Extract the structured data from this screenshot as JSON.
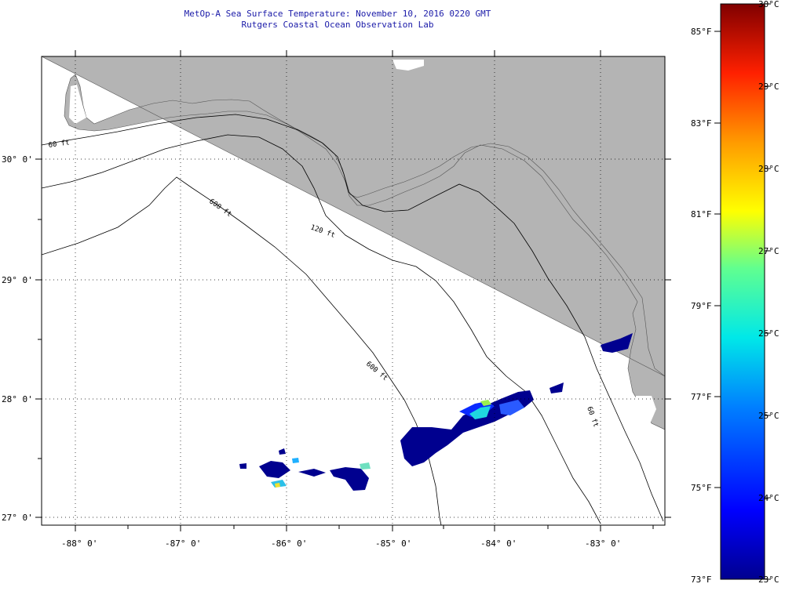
{
  "title_line1": "MetOp-A Sea Surface Temperature:  November 10, 2016 0220 GMT",
  "title_line2": "Rutgers Coastal Ocean Observation Lab",
  "lon_labels": [
    "-88° 0'",
    "-87° 0'",
    "-86° 0'",
    "-85° 0'",
    "-84° 0'",
    "-83° 0'"
  ],
  "lat_labels": [
    "30° 0'",
    "29° 0'",
    "28° 0'",
    "27° 0'"
  ],
  "contour_labels": [
    "60 ft",
    "120 ft",
    "600 ft",
    "600 ft",
    "60 ft"
  ],
  "colorbar": {
    "f_labels": [
      "85°F",
      "83°F",
      "81°F",
      "79°F",
      "77°F",
      "75°F",
      "73°F"
    ],
    "c_labels": [
      "30°C",
      "29°C",
      "28°C",
      "27°C",
      "26°C",
      "25°C",
      "24°C",
      "23°C"
    ]
  },
  "colors": {
    "land": "#b4b4b4",
    "water": "#ffffff",
    "title": "#1a1aa8"
  },
  "chart_data": {
    "type": "heatmap",
    "variable": "sea surface temperature",
    "x_range": [
      -88.3,
      -82.4
    ],
    "y_range": [
      26.9,
      30.85
    ],
    "color_range_c": [
      23,
      30
    ],
    "color_range_f": [
      73,
      86
    ]
  }
}
